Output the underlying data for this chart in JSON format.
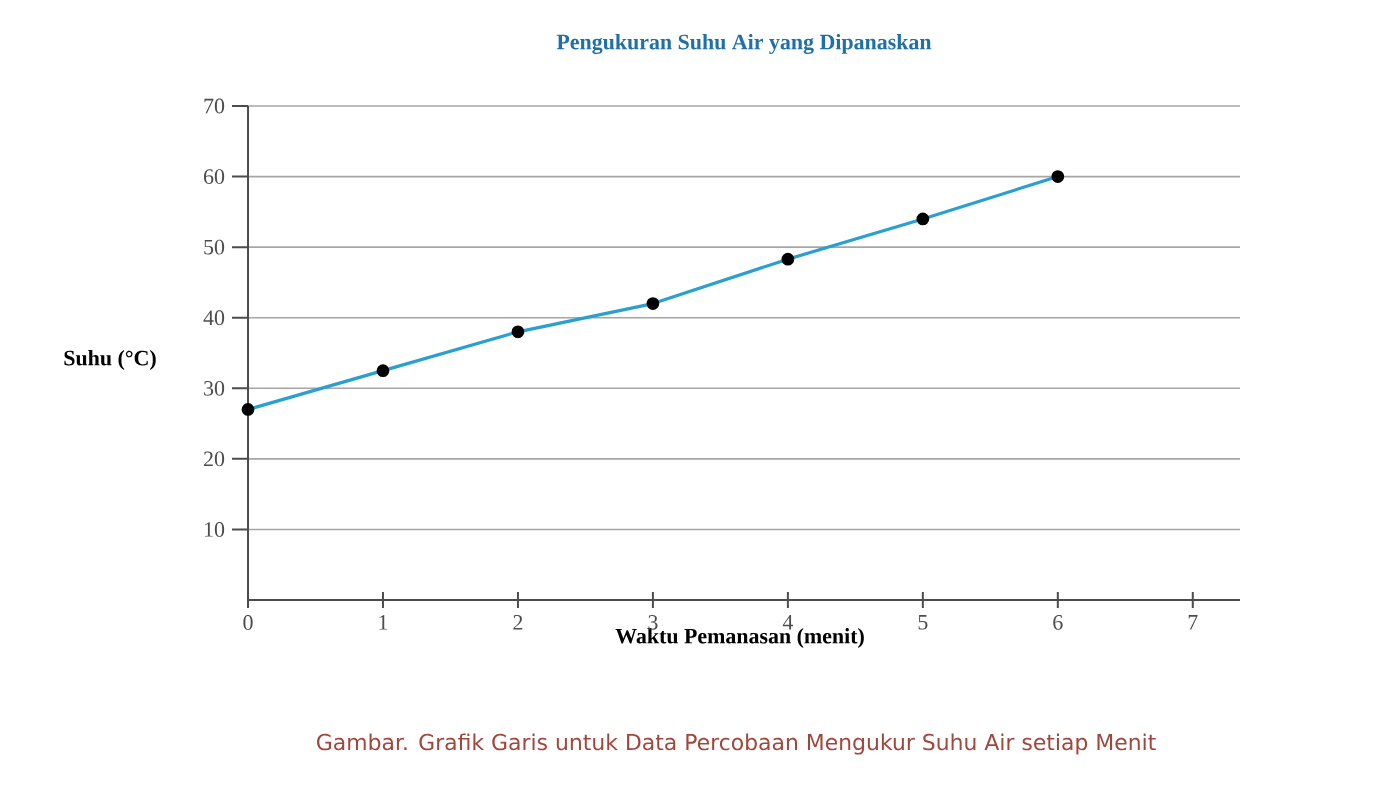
{
  "chart_data": {
    "type": "line",
    "title": "Pengukuran Suhu Air yang Dipanaskan",
    "xlabel": "Waktu Pemanasan (menit)",
    "ylabel": "Suhu (°C)",
    "x": [
      0,
      1,
      2,
      3,
      4,
      5,
      6
    ],
    "series": [
      {
        "color": "#2a9fd0",
        "values": [
          27,
          32.5,
          38,
          42,
          48.3,
          54,
          60
        ]
      }
    ],
    "xlim": [
      0,
      7.35
    ],
    "xticks": [
      0,
      1,
      2,
      3,
      4,
      5,
      6,
      7
    ],
    "ylim": [
      0,
      70
    ],
    "yticks": [
      10,
      20,
      30,
      40,
      50,
      60,
      70
    ],
    "grid": "y",
    "marker": "circle",
    "line_style": "solid",
    "annotations": [
      "Gambar. Grafik Garis untuk Data Percobaan Mengukur Suhu Air setiap Menit"
    ]
  }
}
